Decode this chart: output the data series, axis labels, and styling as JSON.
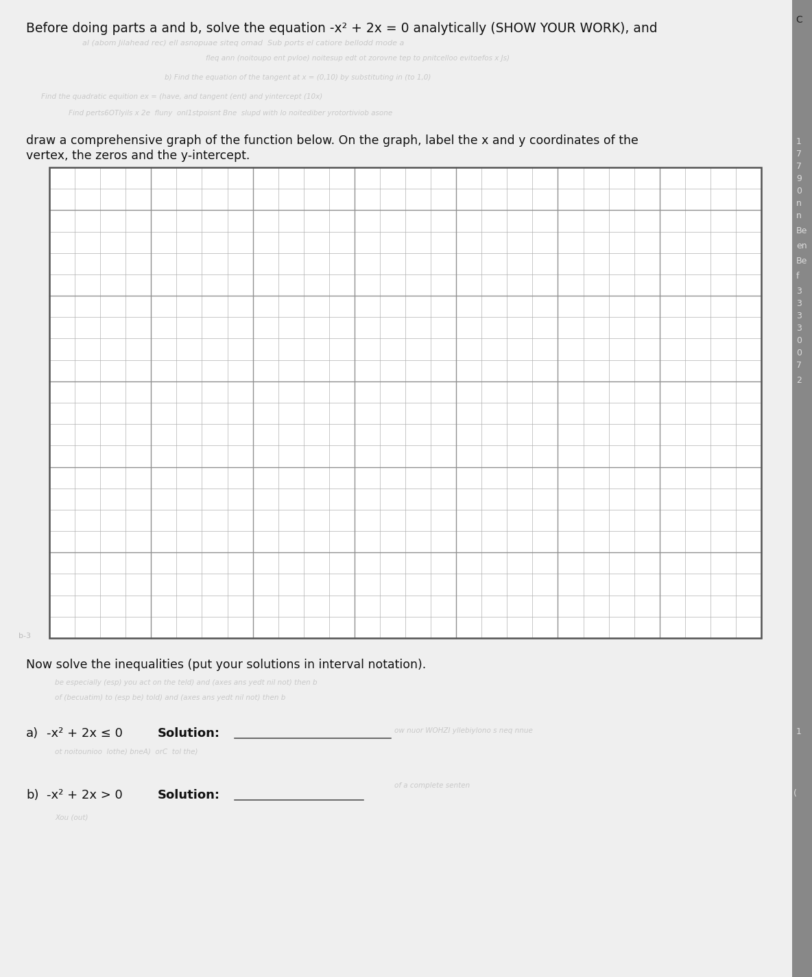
{
  "title_line1": "Before doing parts a and b, solve the equation -x² + 2x = 0 analytically (SHOW YOUR WORK), and",
  "instruction_line1": "draw a comprehensive graph of the function below. On the graph, label the x and y coordinates of the",
  "instruction_line2": "vertex, the zeros and the y-intercept.",
  "inequality_intro": "Now solve the inequalities (put your solutions in interval notation).",
  "part_a_label": "a)",
  "part_a_expr": "-x² + 2x ≤ 0",
  "part_a_solution_label": "Solution:",
  "part_b_label": "b)",
  "part_b_expr": "-x² + 2x > 0",
  "part_b_solution_label": "Solution:",
  "bg_color": "#d8d8d8",
  "paper_color": "#efefef",
  "grid_bg_color": "#ffffff",
  "grid_line_color": "#b0b0b0",
  "grid_major_color": "#909090",
  "text_color": "#111111",
  "faded_color": "#c8c8c8",
  "right_edge_color": "#aaaaaa",
  "grid_rows": 22,
  "grid_cols": 28,
  "font_size_title": 13.5,
  "font_size_body": 12.5,
  "font_size_part": 13,
  "faded_font_size": 7.5
}
